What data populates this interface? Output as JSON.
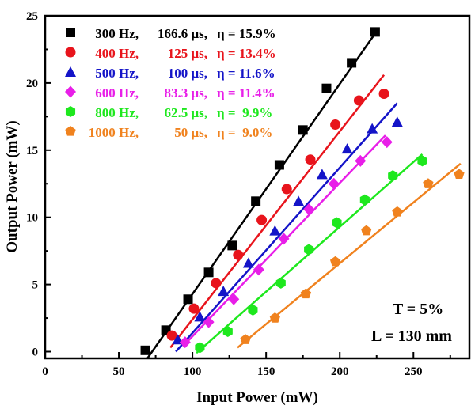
{
  "chart_data": {
    "type": "scatter",
    "title": "",
    "xlabel": "Input Power (mW)",
    "ylabel": "Output Power (mW)",
    "xlim": [
      0,
      288
    ],
    "ylim": [
      -0.5,
      25
    ],
    "xticks": [
      0,
      50,
      100,
      150,
      200,
      250
    ],
    "xtick_labels": [
      "0",
      "50",
      "100",
      "150",
      "200",
      "250"
    ],
    "xminor": [
      25,
      75,
      125,
      175,
      225,
      275
    ],
    "yticks": [
      0,
      5,
      10,
      15,
      20,
      25
    ],
    "ytick_labels": [
      "0",
      "5",
      "10",
      "15",
      "20",
      "25"
    ],
    "yminor": [
      2.5,
      7.5,
      12.5,
      17.5,
      22.5
    ],
    "grid": false,
    "legend_position": "top-left",
    "annotations": [
      "T = 5%",
      "L = 130 mm"
    ],
    "series": [
      {
        "name": "300 Hz",
        "legend": {
          "freq": "300 Hz,",
          "pulse": "166.6 μs,",
          "eta": "η = 15.9%"
        },
        "marker": "square",
        "color": "#000000",
        "x": [
          68,
          82,
          97,
          111,
          127,
          143,
          159,
          175,
          191,
          208,
          224
        ],
        "y": [
          0.1,
          1.6,
          3.9,
          5.9,
          7.9,
          11.2,
          13.9,
          16.5,
          19.6,
          21.5,
          23.8
        ],
        "fit": {
          "x": [
            69.4,
            226
          ],
          "y": [
            -0.5,
            24.0
          ]
        }
      },
      {
        "name": "400 Hz",
        "legend": {
          "freq": "400 Hz,",
          "pulse": "125 μs,",
          "eta": "η = 13.4%"
        },
        "marker": "circle",
        "color": "#e8141c",
        "x": [
          86,
          101,
          116,
          131,
          147,
          164,
          180,
          197,
          213,
          230
        ],
        "y": [
          1.2,
          3.2,
          5.1,
          7.2,
          9.8,
          12.1,
          14.3,
          16.9,
          18.7,
          19.2
        ],
        "fit": {
          "x": [
            85,
            230
          ],
          "y": [
            0.3,
            20.6
          ]
        }
      },
      {
        "name": "500 Hz",
        "legend": {
          "freq": "500 Hz,",
          "pulse": "100 μs,",
          "eta": "η = 11.6%"
        },
        "marker": "triangle",
        "color": "#1414c8",
        "x": [
          90,
          105,
          121,
          138,
          156,
          172,
          188,
          205,
          222,
          239
        ],
        "y": [
          0.9,
          2.6,
          4.5,
          6.6,
          9.0,
          11.2,
          13.2,
          15.1,
          16.6,
          17.1
        ],
        "fit": {
          "x": [
            88.7,
            239
          ],
          "y": [
            0.0,
            18.5
          ]
        }
      },
      {
        "name": "600 Hz",
        "legend": {
          "freq": "600 Hz,",
          "pulse": "83.3 μs,",
          "eta": "η = 11.4%"
        },
        "marker": "diamond",
        "color": "#e81ee8",
        "x": [
          95,
          111,
          128,
          145,
          162,
          179,
          196,
          214,
          232
        ],
        "y": [
          0.7,
          2.2,
          3.9,
          6.1,
          8.4,
          10.6,
          12.5,
          14.2,
          15.6
        ],
        "fit": {
          "x": [
            93.5,
            231
          ],
          "y": [
            0.4,
            16.1
          ]
        }
      },
      {
        "name": "800 Hz",
        "legend": {
          "freq": "800 Hz,",
          "pulse": "62.5 μs,",
          "eta": "η =  9.9%"
        },
        "marker": "hexagon",
        "color": "#1ee81e",
        "x": [
          105,
          124,
          141,
          160,
          179,
          198,
          217,
          236,
          256
        ],
        "y": [
          0.3,
          1.5,
          3.1,
          5.1,
          7.6,
          9.6,
          11.3,
          13.1,
          14.2
        ],
        "fit": {
          "x": [
            102.7,
            256
          ],
          "y": [
            -0.1,
            14.7
          ]
        }
      },
      {
        "name": "1000 Hz",
        "legend": {
          "freq": "1000 Hz,",
          "pulse": "50 μs,",
          "eta": "η =  9.0%"
        },
        "marker": "pentagon",
        "color": "#f0821e",
        "x": [
          136,
          156,
          177,
          197,
          218,
          239,
          260,
          281
        ],
        "y": [
          0.9,
          2.5,
          4.3,
          6.7,
          9.0,
          10.4,
          12.5,
          13.2
        ],
        "fit": {
          "x": [
            130.6,
            282
          ],
          "y": [
            0.3,
            14.0
          ]
        }
      }
    ]
  }
}
